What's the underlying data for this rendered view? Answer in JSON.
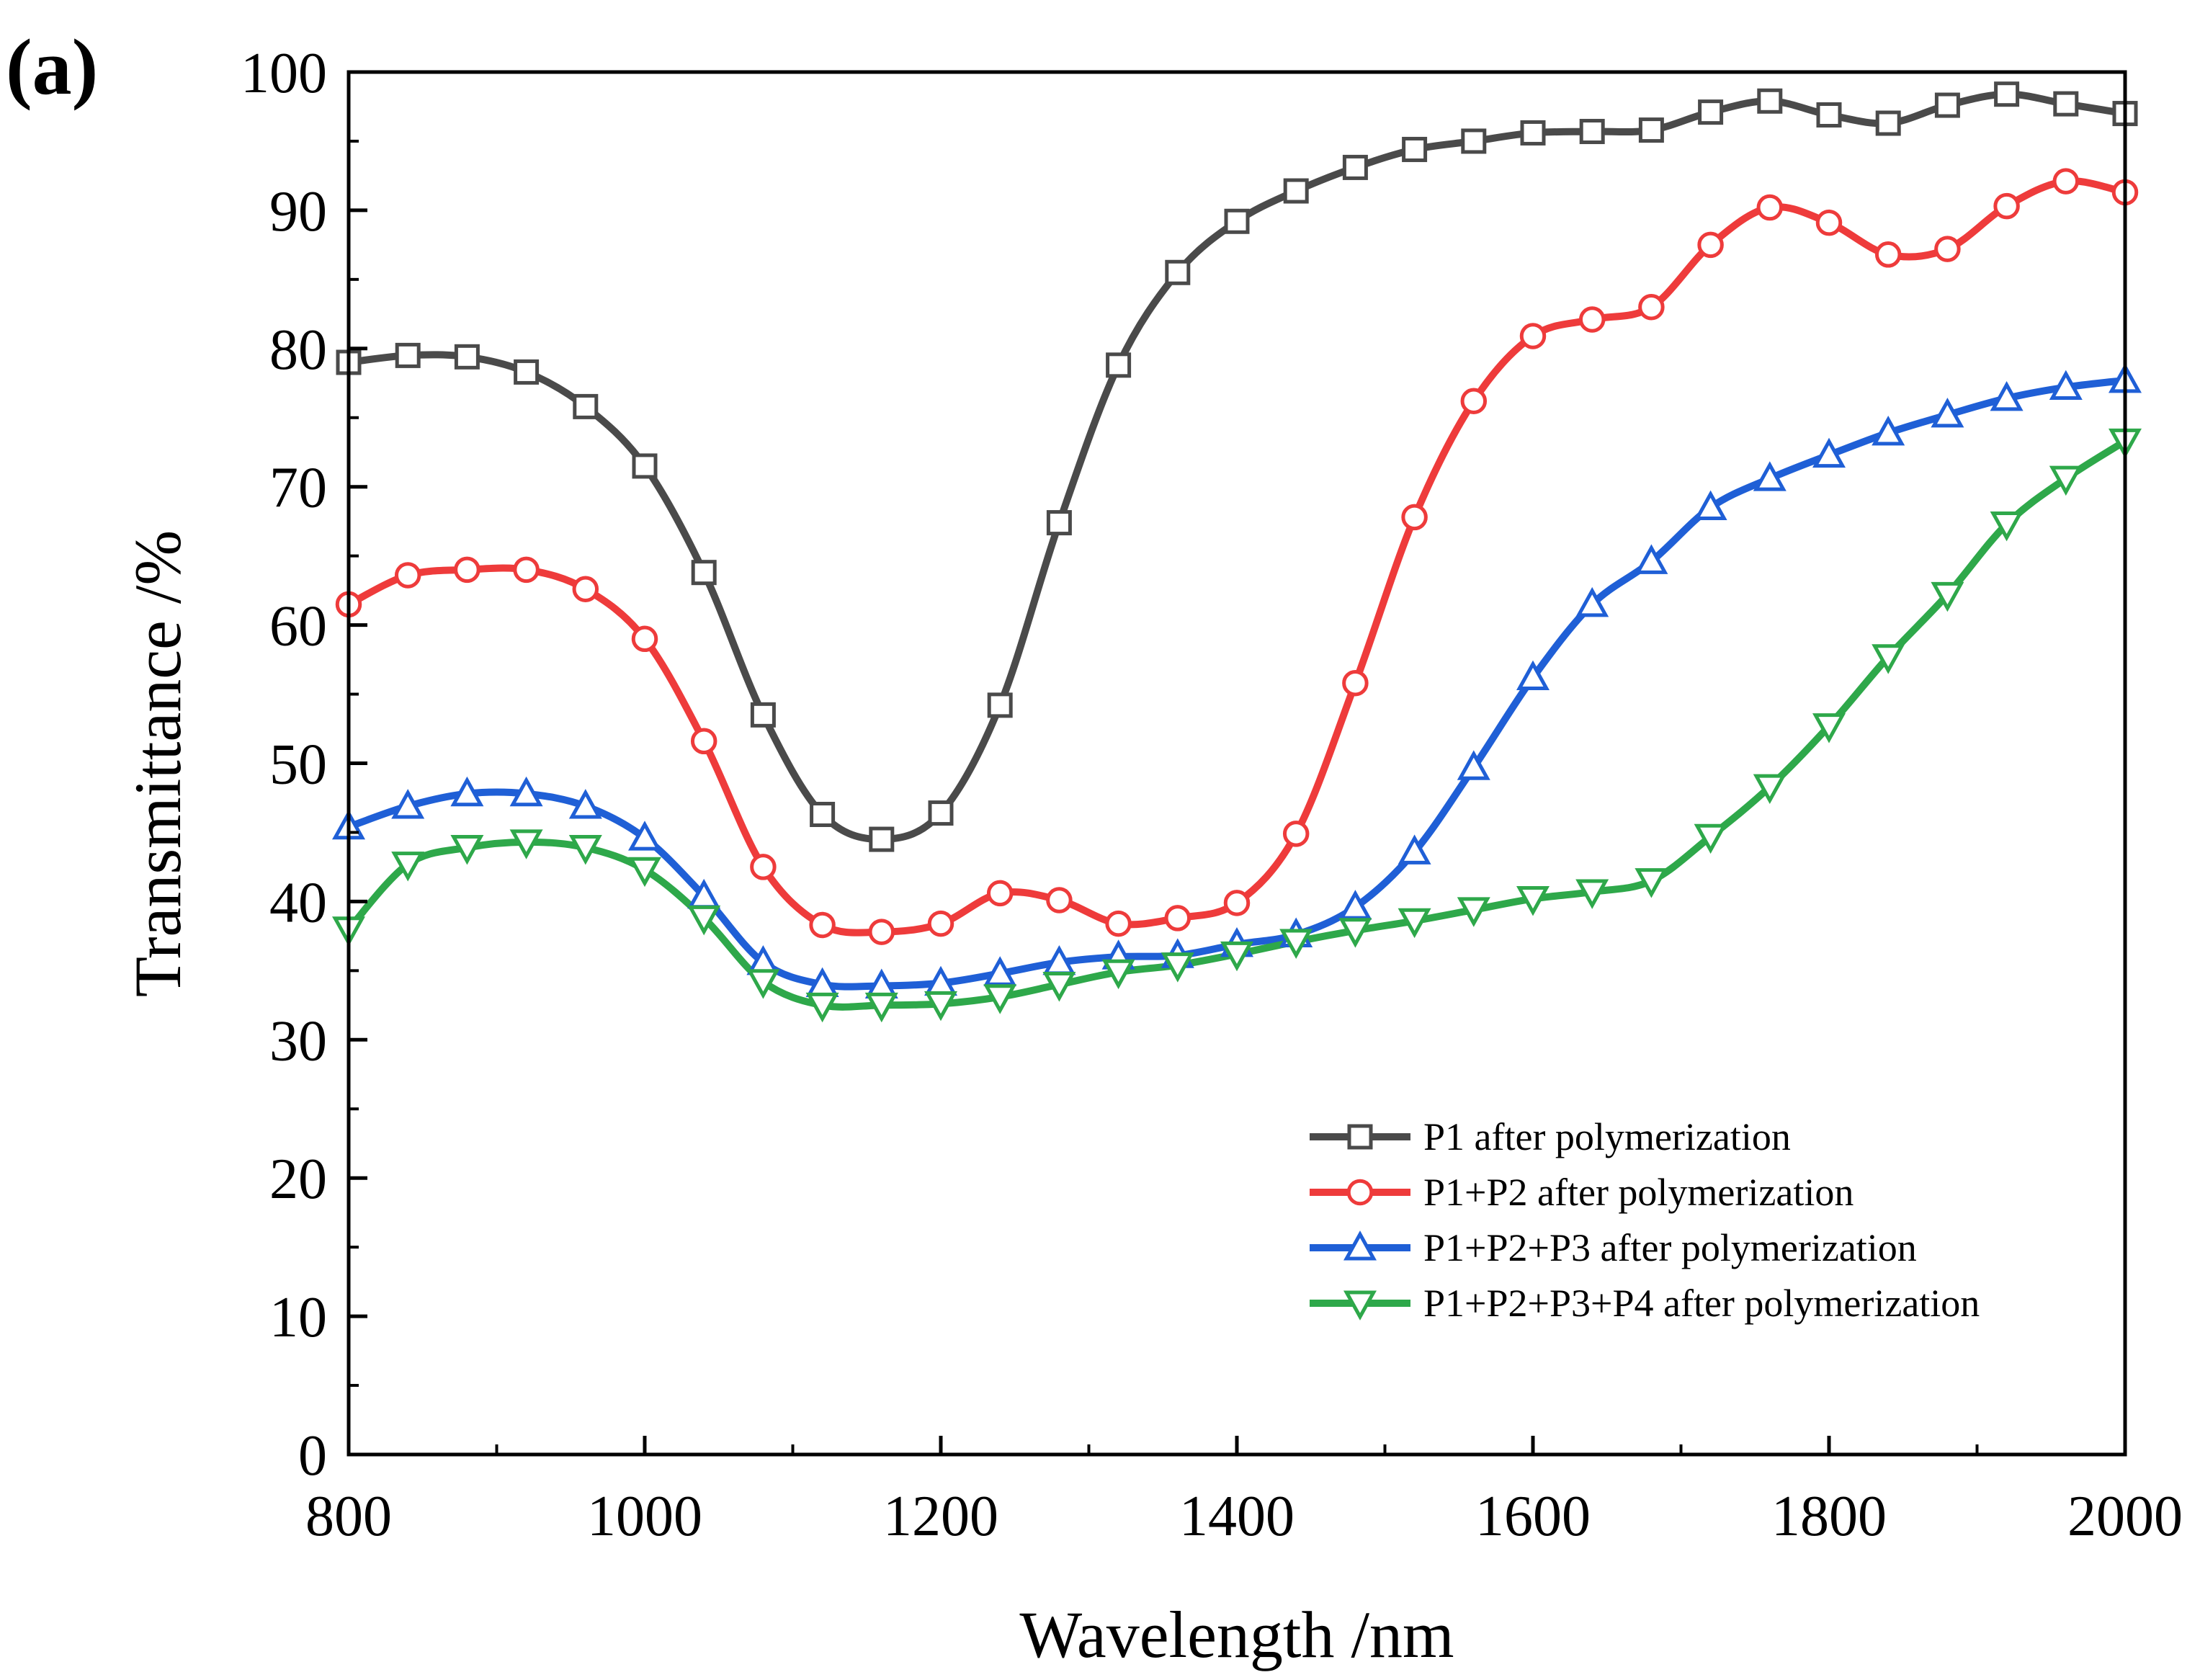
{
  "chart_data": {
    "type": "line",
    "panel_label": "(a)",
    "xlabel": "Wavelength /nm",
    "ylabel": "Transmittance /%",
    "xlim": [
      800,
      2000
    ],
    "ylim": [
      0,
      100
    ],
    "xticks": [
      800,
      1000,
      1200,
      1400,
      1600,
      1800,
      2000
    ],
    "yticks": [
      0,
      10,
      20,
      30,
      40,
      50,
      60,
      70,
      80,
      90,
      100
    ],
    "grid": false,
    "legend_position": "lower-right",
    "x": [
      800,
      840,
      880,
      920,
      960,
      1000,
      1040,
      1080,
      1120,
      1160,
      1200,
      1240,
      1280,
      1320,
      1360,
      1400,
      1440,
      1480,
      1520,
      1560,
      1600,
      1640,
      1680,
      1720,
      1760,
      1800,
      1840,
      1880,
      1920,
      1960,
      2000
    ],
    "series": [
      {
        "name": "P1 after polymerization",
        "color": "#4a4a4a",
        "marker": "square",
        "values": [
          79.0,
          79.5,
          79.4,
          78.3,
          75.8,
          71.5,
          63.8,
          53.5,
          46.3,
          44.5,
          46.4,
          54.2,
          67.4,
          78.8,
          85.5,
          89.2,
          91.4,
          93.1,
          94.4,
          95.0,
          95.6,
          95.7,
          95.8,
          97.1,
          97.9,
          96.9,
          96.3,
          97.6,
          98.4,
          97.7,
          97.0
        ]
      },
      {
        "name": "P1+P2 after polymerization",
        "color": "#ee3b3b",
        "marker": "circle",
        "values": [
          61.5,
          63.6,
          64.0,
          64.0,
          62.6,
          59.0,
          51.6,
          42.5,
          38.3,
          37.8,
          38.4,
          40.6,
          40.1,
          38.4,
          38.8,
          39.9,
          44.9,
          55.8,
          67.8,
          76.2,
          80.9,
          82.1,
          83.0,
          87.5,
          90.2,
          89.1,
          86.8,
          87.2,
          90.3,
          92.1,
          91.3
        ]
      },
      {
        "name": "P1+P2+P3 after polymerization",
        "color": "#1f5fd6",
        "marker": "triangle-up",
        "values": [
          45.4,
          46.9,
          47.8,
          47.8,
          46.9,
          44.6,
          40.4,
          35.6,
          34.0,
          33.9,
          34.1,
          34.8,
          35.6,
          36.0,
          36.1,
          36.9,
          37.6,
          39.6,
          43.6,
          49.7,
          56.2,
          61.5,
          64.6,
          68.5,
          70.6,
          72.3,
          73.9,
          75.2,
          76.4,
          77.2,
          77.7
        ]
      },
      {
        "name": "P1+P2+P3+P4 after polymerization",
        "color": "#2ea84a",
        "marker": "triangle-down",
        "values": [
          38.0,
          42.7,
          43.9,
          44.3,
          43.9,
          42.3,
          38.8,
          34.2,
          32.5,
          32.5,
          32.6,
          33.1,
          34.0,
          34.9,
          35.4,
          36.2,
          37.1,
          37.9,
          38.6,
          39.4,
          40.2,
          40.7,
          41.5,
          44.7,
          48.3,
          52.7,
          57.7,
          62.2,
          67.3,
          70.6,
          73.3
        ]
      }
    ]
  }
}
